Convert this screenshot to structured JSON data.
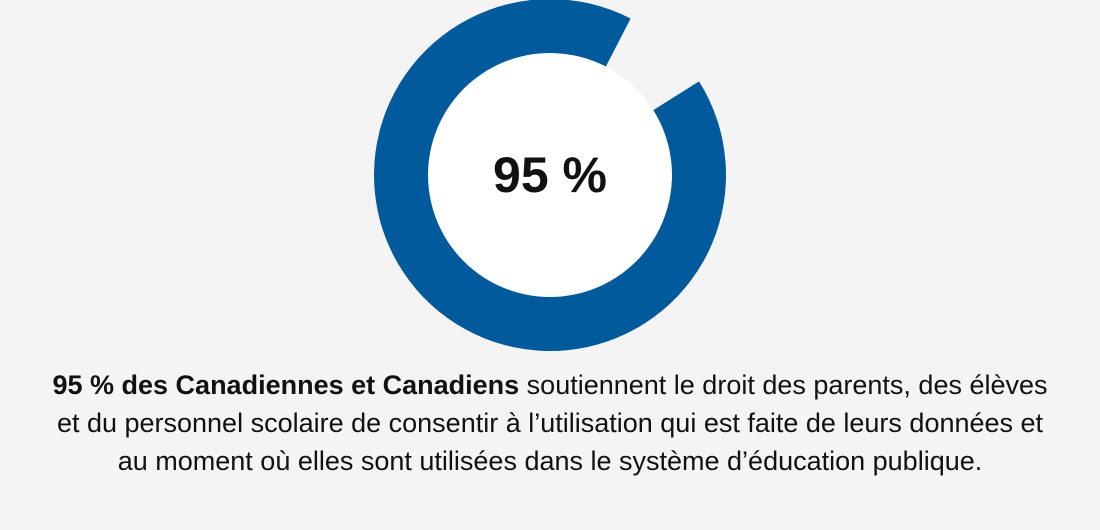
{
  "chart_data": {
    "type": "pie",
    "variant": "donut",
    "value": 95,
    "max": 100,
    "center_label": "95 %",
    "colors": {
      "filled": "#005a9c",
      "remainder": "#f4f4f4",
      "center": "#ffffff",
      "background": "#f4f4f4"
    }
  },
  "caption": {
    "bold": "95 % des Canadiennes et Canadiens",
    "rest": " soutiennent le droit des parents, des élèves et du personnel scolaire de consentir à l’utilisation qui est faite de leurs données et au moment où elles sont utilisées dans le système d’éducation publique."
  }
}
